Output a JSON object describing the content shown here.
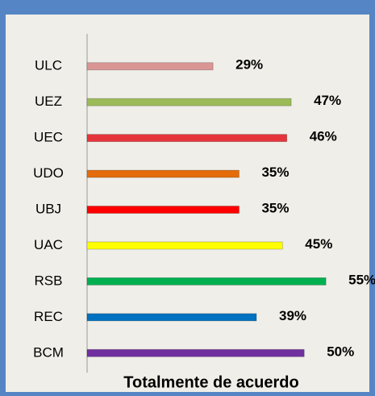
{
  "chart_data": {
    "type": "bar",
    "orientation": "horizontal",
    "title": "Totalmente de acuerdo",
    "categories": [
      "ULC",
      "UEZ",
      "UEC",
      "UDO",
      "UBJ",
      "UAC",
      "RSB",
      "REC",
      "BCM"
    ],
    "series": [
      {
        "name": "Totalmente de acuerdo",
        "colors": [
          "#d99694",
          "#9bbb59",
          "#e5343a",
          "#e46c0a",
          "#ff0000",
          "#ffff00",
          "#00b050",
          "#0070c0",
          "#7030a0"
        ],
        "values": [
          29,
          47,
          46,
          35,
          35,
          45,
          55,
          39,
          50
        ],
        "value_labels": [
          "29%",
          "47%",
          "46%",
          "35%",
          "35%",
          "45%",
          "55%",
          "39%",
          "50%"
        ]
      }
    ],
    "xlim": [
      0,
      65
    ]
  }
}
